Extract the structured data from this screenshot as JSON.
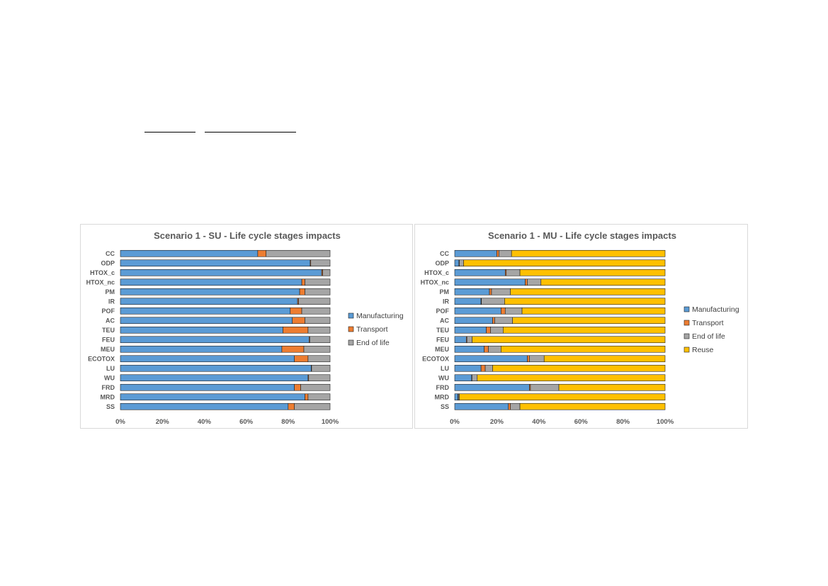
{
  "colors": {
    "Manufacturing": "#5b9bd5",
    "Transport": "#ed7d31",
    "End of life": "#a5a5a5",
    "Reuse": "#ffc000",
    "outline": "#1f1f1f"
  },
  "chart_data": [
    {
      "type": "bar",
      "orientation": "horizontal",
      "stacked": "percent",
      "title": "Scenario 1 - SU - Life cycle stages impacts",
      "xlim": [
        0,
        100
      ],
      "xticks": [
        "0%",
        "20%",
        "40%",
        "60%",
        "80%",
        "100%"
      ],
      "legend_position": "right",
      "categories": [
        "CC",
        "ODP",
        "HTOX_c",
        "HTOX_nc",
        "PM",
        "IR",
        "POF",
        "AC",
        "TEU",
        "FEU",
        "MEU",
        "ECOTOX",
        "LU",
        "WU",
        "FRD",
        "MRD",
        "SS"
      ],
      "series": [
        {
          "name": "Manufacturing",
          "values": [
            65.5,
            90.5,
            96,
            86.5,
            85.5,
            84.5,
            81,
            82,
            77.5,
            90,
            77,
            83,
            91,
            89.5,
            83,
            88,
            80
          ]
        },
        {
          "name": "Transport",
          "values": [
            4,
            0.3,
            0.5,
            1.5,
            2.5,
            0.5,
            5.5,
            6,
            12,
            0.3,
            10.5,
            6.5,
            0.2,
            0.3,
            3,
            1.5,
            3
          ]
        },
        {
          "name": "End of life",
          "values": [
            30.5,
            9.2,
            3.5,
            12,
            12,
            15,
            13.5,
            12,
            10.5,
            9.7,
            12.5,
            10.5,
            8.8,
            10.2,
            14,
            10.5,
            17
          ]
        }
      ]
    },
    {
      "type": "bar",
      "orientation": "horizontal",
      "stacked": "percent",
      "title": "Scenario 1 - MU - Life cycle stages impacts",
      "xlim": [
        0,
        100
      ],
      "xticks": [
        "0%",
        "20%",
        "40%",
        "60%",
        "80%",
        "100%"
      ],
      "legend_position": "right",
      "categories": [
        "CC",
        "ODP",
        "HTOX_c",
        "HTOX_nc",
        "PM",
        "IR",
        "POF",
        "AC",
        "TEU",
        "FEU",
        "MEU",
        "ECOTOX",
        "LU",
        "WU",
        "FRD",
        "MRD",
        "SS"
      ],
      "series": [
        {
          "name": "Manufacturing",
          "values": [
            20,
            2,
            24,
            33.5,
            16.5,
            12.5,
            22,
            18,
            15,
            5.5,
            14,
            34.5,
            12.5,
            8,
            35.5,
            1.5,
            25.5
          ]
        },
        {
          "name": "Transport",
          "values": [
            1,
            0.2,
            0.5,
            1,
            1,
            0.2,
            2,
            1,
            2,
            0.3,
            2,
            1,
            2,
            0.2,
            0.5,
            0.2,
            1
          ]
        },
        {
          "name": "End of life",
          "values": [
            6,
            2,
            6.5,
            6.5,
            9,
            11,
            8,
            8.5,
            6,
            2.5,
            6,
            7,
            3.5,
            2.5,
            13.5,
            0.5,
            4.5
          ]
        },
        {
          "name": "Reuse",
          "values": [
            73,
            95.8,
            69,
            59,
            73.5,
            76.3,
            68,
            72.5,
            77,
            91.7,
            78,
            57.5,
            82,
            89.3,
            50.5,
            97.8,
            69
          ]
        }
      ]
    }
  ]
}
